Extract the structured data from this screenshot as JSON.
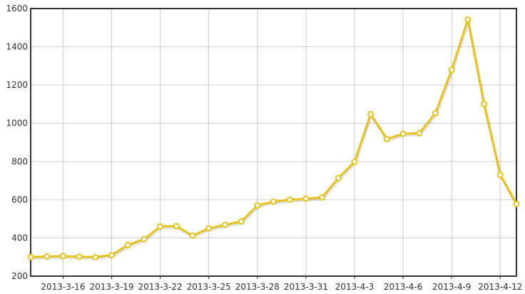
{
  "chart_data": {
    "type": "line",
    "title": "",
    "xlabel": "",
    "ylabel": "",
    "ylim": [
      200,
      1600
    ],
    "yticks": [
      200,
      400,
      600,
      800,
      1000,
      1200,
      1400,
      1600
    ],
    "xlim": [
      "2013-3-14",
      "2013-4-13"
    ],
    "xtick_labels": [
      "2013-3-16",
      "2013-3-19",
      "2013-3-22",
      "2013-3-25",
      "2013-3-28",
      "2013-3-31",
      "2013-4-3",
      "2013-4-6",
      "2013-4-9",
      "2013-4-12"
    ],
    "grid": true,
    "legend": "none",
    "line_color": "#e6c21c",
    "marker_fill": "#ffffff",
    "series": [
      {
        "x": [
          "2013-3-14",
          "2013-3-15",
          "2013-3-16",
          "2013-3-17",
          "2013-3-18",
          "2013-3-19",
          "2013-3-20",
          "2013-3-21",
          "2013-3-22",
          "2013-3-23",
          "2013-3-24",
          "2013-3-25",
          "2013-3-26",
          "2013-3-27",
          "2013-3-28",
          "2013-3-29",
          "2013-3-30",
          "2013-3-31",
          "2013-4-1",
          "2013-4-2",
          "2013-4-3",
          "2013-4-4",
          "2013-4-5",
          "2013-4-6",
          "2013-4-7",
          "2013-4-8",
          "2013-4-9",
          "2013-4-10",
          "2013-4-11",
          "2013-4-12",
          "2013-4-13"
        ],
        "values": [
          300,
          303,
          305,
          302,
          300,
          310,
          363,
          393,
          460,
          462,
          412,
          450,
          468,
          486,
          570,
          590,
          600,
          605,
          612,
          713,
          798,
          1048,
          917,
          945,
          948,
          1053,
          1280,
          1543,
          1100,
          730,
          578
        ]
      }
    ]
  }
}
